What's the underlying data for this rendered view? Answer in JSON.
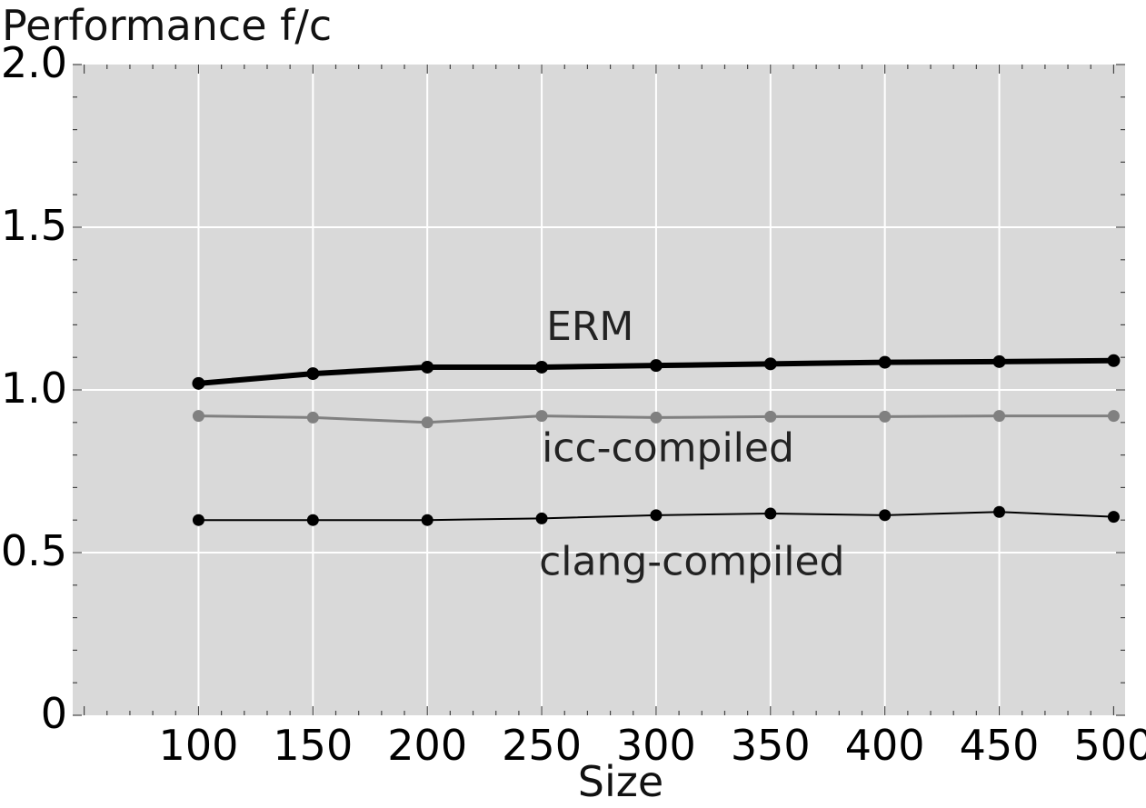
{
  "chart_data": {
    "type": "line",
    "title": "",
    "ylabel": "Performance f/c",
    "xlabel": "Size",
    "x": [
      100,
      150,
      200,
      250,
      300,
      350,
      400,
      450,
      500
    ],
    "xlim": [
      45,
      505
    ],
    "ylim": [
      0,
      2.0
    ],
    "xticks": [
      "100",
      "150",
      "200",
      "250",
      "300",
      "350",
      "400",
      "450",
      "500"
    ],
    "yticks": [
      "0",
      "0.5",
      "1.0",
      "1.5",
      "2.0"
    ],
    "grid": true,
    "series": [
      {
        "name": "ERM",
        "color": "#000000",
        "values": [
          1.02,
          1.05,
          1.07,
          1.07,
          1.075,
          1.08,
          1.085,
          1.087,
          1.09
        ]
      },
      {
        "name": "icc-compiled",
        "color": "#808080",
        "values": [
          0.92,
          0.915,
          0.9,
          0.92,
          0.915,
          0.918,
          0.918,
          0.92,
          0.92
        ]
      },
      {
        "name": "clang-compiled",
        "color": "#000000",
        "values": [
          0.6,
          0.6,
          0.6,
          0.605,
          0.615,
          0.62,
          0.615,
          0.625,
          0.61
        ]
      }
    ]
  }
}
